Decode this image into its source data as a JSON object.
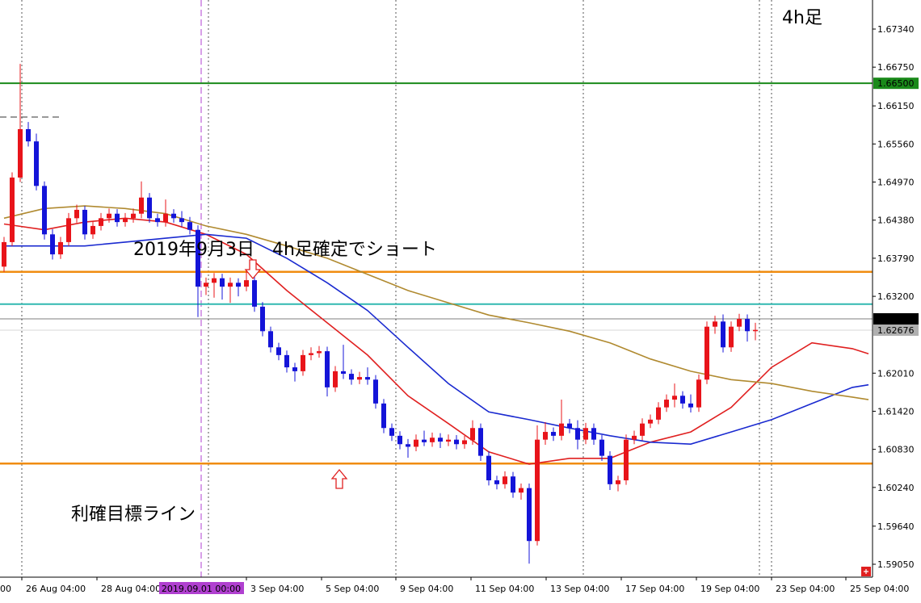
{
  "chart_data": {
    "type": "candlestick",
    "ylim": [
      1.5885,
      1.6779
    ],
    "yticks": [
      {
        "value": 1.6734,
        "label": "1.67340"
      },
      {
        "value": 1.6675,
        "label": "1.66750"
      },
      {
        "value": 1.6615,
        "label": "1.66150"
      },
      {
        "value": 1.6556,
        "label": "1.65560"
      },
      {
        "value": 1.6497,
        "label": "1.64970"
      },
      {
        "value": 1.6438,
        "label": "1.64380"
      },
      {
        "value": 1.6379,
        "label": "1.63790"
      },
      {
        "value": 1.632,
        "label": "1.63200"
      },
      {
        "value": 1.6201,
        "label": "1.62010"
      },
      {
        "value": 1.6142,
        "label": "1.61420"
      },
      {
        "value": 1.6083,
        "label": "1.60830"
      },
      {
        "value": 1.6024,
        "label": "1.60240"
      },
      {
        "value": 1.5964,
        "label": "1.59640"
      },
      {
        "value": 1.5905,
        "label": "1.59050"
      }
    ],
    "xlim": [
      -0.5,
      107.5
    ],
    "xticks": [
      {
        "value": -1,
        "label": "00"
      },
      {
        "value": 2.2,
        "label": "26 Aug 04:00"
      },
      {
        "value": 11.5,
        "label": "28 Aug 04:00"
      },
      {
        "value": 30,
        "label": "3 Sep 04:00"
      },
      {
        "value": 39.3,
        "label": "5 Sep 04:00"
      },
      {
        "value": 48.5,
        "label": "9 Sep 04:00"
      },
      {
        "value": 57.8,
        "label": "11 Sep 04:00"
      },
      {
        "value": 67.1,
        "label": "13 Sep 04:00"
      },
      {
        "value": 76.4,
        "label": "17 Sep 04:00"
      },
      {
        "value": 85.7,
        "label": "19 Sep 04:00"
      },
      {
        "value": 95,
        "label": "23 Sep 04:00"
      },
      {
        "value": 104.2,
        "label": "25 Sep 04:00"
      }
    ],
    "xgrid": [
      2.2,
      25.3,
      48.5,
      71.7,
      93.5,
      95
    ],
    "vline": {
      "value": 24.4,
      "label": "2019.09.01 00:00",
      "color": "#b040d0"
    },
    "up_color": "#e8141a",
    "down_color": "#1414d8",
    "candles": [
      [
        1.6366,
        1.6412,
        1.6358,
        1.6404
      ],
      [
        1.6404,
        1.6512,
        1.6398,
        1.6504
      ],
      [
        1.6504,
        1.668,
        1.6497,
        1.6579
      ],
      [
        1.6579,
        1.659,
        1.6552,
        1.656
      ],
      [
        1.656,
        1.6572,
        1.6484,
        1.6491
      ],
      [
        1.6491,
        1.6498,
        1.6408,
        1.6416
      ],
      [
        1.6416,
        1.6424,
        1.6377,
        1.6385
      ],
      [
        1.6385,
        1.6412,
        1.6378,
        1.6404
      ],
      [
        1.6404,
        1.6449,
        1.6398,
        1.6441
      ],
      [
        1.6441,
        1.6462,
        1.6434,
        1.6454
      ],
      [
        1.6454,
        1.646,
        1.6408,
        1.6416
      ],
      [
        1.6416,
        1.6437,
        1.6409,
        1.6429
      ],
      [
        1.6429,
        1.6449,
        1.6422,
        1.6441
      ],
      [
        1.6441,
        1.6456,
        1.6434,
        1.6448
      ],
      [
        1.6448,
        1.6455,
        1.6428,
        1.6435
      ],
      [
        1.6435,
        1.6449,
        1.6428,
        1.6441
      ],
      [
        1.6441,
        1.6456,
        1.6434,
        1.6448
      ],
      [
        1.6448,
        1.6498,
        1.6441,
        1.6473
      ],
      [
        1.6473,
        1.648,
        1.6434,
        1.6441
      ],
      [
        1.6441,
        1.6448,
        1.6428,
        1.6435
      ],
      [
        1.6435,
        1.647,
        1.6428,
        1.6448
      ],
      [
        1.6448,
        1.6455,
        1.6434,
        1.6441
      ],
      [
        1.6441,
        1.6452,
        1.6428,
        1.6435
      ],
      [
        1.6435,
        1.6443,
        1.6416,
        1.6423
      ],
      [
        1.6423,
        1.643,
        1.6288,
        1.6335
      ],
      [
        1.6335,
        1.6349,
        1.6322,
        1.6341
      ],
      [
        1.6341,
        1.6356,
        1.6318,
        1.6348
      ],
      [
        1.6348,
        1.6355,
        1.6315,
        1.6335
      ],
      [
        1.6335,
        1.6349,
        1.631,
        1.6341
      ],
      [
        1.6341,
        1.6348,
        1.632,
        1.6335
      ],
      [
        1.6335,
        1.636,
        1.6328,
        1.6345
      ],
      [
        1.6345,
        1.6352,
        1.6296,
        1.6304
      ],
      [
        1.6304,
        1.6311,
        1.6258,
        1.6266
      ],
      [
        1.6266,
        1.6273,
        1.6233,
        1.6241
      ],
      [
        1.6241,
        1.6248,
        1.6221,
        1.6229
      ],
      [
        1.6229,
        1.6236,
        1.6202,
        1.621
      ],
      [
        1.621,
        1.6217,
        1.6188,
        1.6204
      ],
      [
        1.6204,
        1.6237,
        1.6197,
        1.6229
      ],
      [
        1.6229,
        1.6241,
        1.6221,
        1.6232
      ],
      [
        1.6232,
        1.6243,
        1.6225,
        1.6235
      ],
      [
        1.6235,
        1.6242,
        1.6165,
        1.6179
      ],
      [
        1.6179,
        1.6212,
        1.6172,
        1.6204
      ],
      [
        1.6204,
        1.6245,
        1.6192,
        1.62
      ],
      [
        1.62,
        1.6207,
        1.6183,
        1.6191
      ],
      [
        1.6191,
        1.6203,
        1.6184,
        1.6195
      ],
      [
        1.6195,
        1.621,
        1.6183,
        1.6191
      ],
      [
        1.6191,
        1.6198,
        1.6146,
        1.6154
      ],
      [
        1.6154,
        1.6161,
        1.6108,
        1.6116
      ],
      [
        1.6116,
        1.6123,
        1.6096,
        1.6104
      ],
      [
        1.6104,
        1.6111,
        1.6083,
        1.6091
      ],
      [
        1.6091,
        1.6099,
        1.607,
        1.6087
      ],
      [
        1.6087,
        1.6106,
        1.608,
        1.6098
      ],
      [
        1.6098,
        1.6112,
        1.6088,
        1.6094
      ],
      [
        1.6094,
        1.6109,
        1.6087,
        1.6101
      ],
      [
        1.6101,
        1.6108,
        1.6085,
        1.6095
      ],
      [
        1.6095,
        1.6106,
        1.6088,
        1.6098
      ],
      [
        1.6098,
        1.6105,
        1.6083,
        1.6091
      ],
      [
        1.6091,
        1.6104,
        1.6084,
        1.6097
      ],
      [
        1.6097,
        1.6128,
        1.609,
        1.6116
      ],
      [
        1.6116,
        1.6123,
        1.6065,
        1.6073
      ],
      [
        1.6073,
        1.608,
        1.6027,
        1.6035
      ],
      [
        1.6035,
        1.6042,
        1.6021,
        1.6029
      ],
      [
        1.6029,
        1.6049,
        1.6022,
        1.6041
      ],
      [
        1.6041,
        1.6048,
        1.6008,
        1.6016
      ],
      [
        1.6016,
        1.603,
        1.6005,
        1.6023
      ],
      [
        1.6023,
        1.603,
        1.5906,
        1.5941
      ],
      [
        1.5941,
        1.612,
        1.5934,
        1.6098
      ],
      [
        1.6098,
        1.6125,
        1.609,
        1.611
      ],
      [
        1.611,
        1.6117,
        1.6096,
        1.6104
      ],
      [
        1.6104,
        1.616,
        1.6097,
        1.6123
      ],
      [
        1.6123,
        1.613,
        1.6108,
        1.6116
      ],
      [
        1.6116,
        1.6128,
        1.6083,
        1.6098
      ],
      [
        1.6098,
        1.6124,
        1.6091,
        1.6116
      ],
      [
        1.6116,
        1.6123,
        1.609,
        1.6098
      ],
      [
        1.6098,
        1.6105,
        1.6065,
        1.6073
      ],
      [
        1.6073,
        1.608,
        1.602,
        1.6029
      ],
      [
        1.6029,
        1.6042,
        1.6018,
        1.6035
      ],
      [
        1.6035,
        1.6106,
        1.6028,
        1.6098
      ],
      [
        1.6098,
        1.6112,
        1.6091,
        1.6104
      ],
      [
        1.6104,
        1.6131,
        1.6097,
        1.6123
      ],
      [
        1.6123,
        1.6137,
        1.6116,
        1.6129
      ],
      [
        1.6129,
        1.6156,
        1.6122,
        1.6148
      ],
      [
        1.6148,
        1.6168,
        1.6141,
        1.616
      ],
      [
        1.616,
        1.6185,
        1.6148,
        1.6166
      ],
      [
        1.6166,
        1.6173,
        1.6146,
        1.6154
      ],
      [
        1.6154,
        1.6168,
        1.614,
        1.6148
      ],
      [
        1.6148,
        1.6199,
        1.6141,
        1.6191
      ],
      [
        1.6191,
        1.6281,
        1.6184,
        1.6273
      ],
      [
        1.6273,
        1.629,
        1.6262,
        1.6281
      ],
      [
        1.6281,
        1.6292,
        1.6233,
        1.6241
      ],
      [
        1.6241,
        1.6281,
        1.6234,
        1.6273
      ],
      [
        1.6273,
        1.6293,
        1.6266,
        1.6285
      ],
      [
        1.6285,
        1.6292,
        1.625,
        1.6266
      ],
      [
        1.6266,
        1.6279,
        1.6252,
        1.6268
      ]
    ],
    "ma_lines": [
      {
        "color": "#e02020",
        "x": [
          0,
          5,
          10,
          15,
          20,
          25,
          30,
          35,
          40,
          45,
          50,
          55,
          60,
          65,
          70,
          75,
          80,
          85,
          90,
          95,
          100,
          105,
          107
        ],
        "values": [
          1.6432,
          1.6423,
          1.6435,
          1.6441,
          1.6435,
          1.6416,
          1.6385,
          1.6329,
          1.6279,
          1.6229,
          1.6166,
          1.6123,
          1.6079,
          1.606,
          1.6069,
          1.6069,
          1.6094,
          1.611,
          1.6148,
          1.621,
          1.6248,
          1.6239,
          1.6231
        ]
      },
      {
        "color": "#1a2ad0",
        "x": [
          0,
          5,
          10,
          15,
          20,
          25,
          30,
          35,
          40,
          45,
          50,
          55,
          60,
          65,
          70,
          75,
          80,
          85,
          90,
          95,
          100,
          105,
          107
        ],
        "values": [
          1.6398,
          1.6398,
          1.6398,
          1.6404,
          1.641,
          1.6416,
          1.641,
          1.6379,
          1.6341,
          1.6298,
          1.6241,
          1.6185,
          1.6141,
          1.6129,
          1.6116,
          1.6104,
          1.6094,
          1.6091,
          1.611,
          1.6129,
          1.6154,
          1.6179,
          1.6183
        ]
      },
      {
        "color": "#b08a30",
        "x": [
          0,
          5,
          10,
          15,
          20,
          25,
          30,
          35,
          40,
          45,
          50,
          55,
          60,
          65,
          70,
          75,
          80,
          85,
          90,
          95,
          100,
          105,
          107
        ],
        "values": [
          1.6441,
          1.6456,
          1.646,
          1.6456,
          1.6448,
          1.6429,
          1.6416,
          1.6398,
          1.6379,
          1.6354,
          1.6329,
          1.631,
          1.6291,
          1.6279,
          1.6266,
          1.6248,
          1.6223,
          1.6204,
          1.6191,
          1.6185,
          1.6173,
          1.6164,
          1.616
        ]
      }
    ],
    "levels": [
      {
        "value": 1.665,
        "label": "1.66500",
        "color": "#1a8a1a",
        "width": 2
      },
      {
        "value": 1.6358,
        "color": "#f08c10",
        "width": 2.5
      },
      {
        "value": 1.6308,
        "color": "#30b8b0",
        "width": 2
      },
      {
        "value": 1.6061,
        "color": "#f08c10",
        "width": 2.5
      },
      {
        "value": 1.62851,
        "label": "1.62851",
        "color": "#000000",
        "width": 0.6
      },
      {
        "value": 1.62676,
        "label": "1.62676",
        "color": "#b0b0b0",
        "width": 0.6
      }
    ],
    "annotations": [
      {
        "text": "4h足"
      },
      {
        "text": "2019年9月3日　4h足確定でショート"
      },
      {
        "text": "利確目標ライン"
      }
    ]
  }
}
